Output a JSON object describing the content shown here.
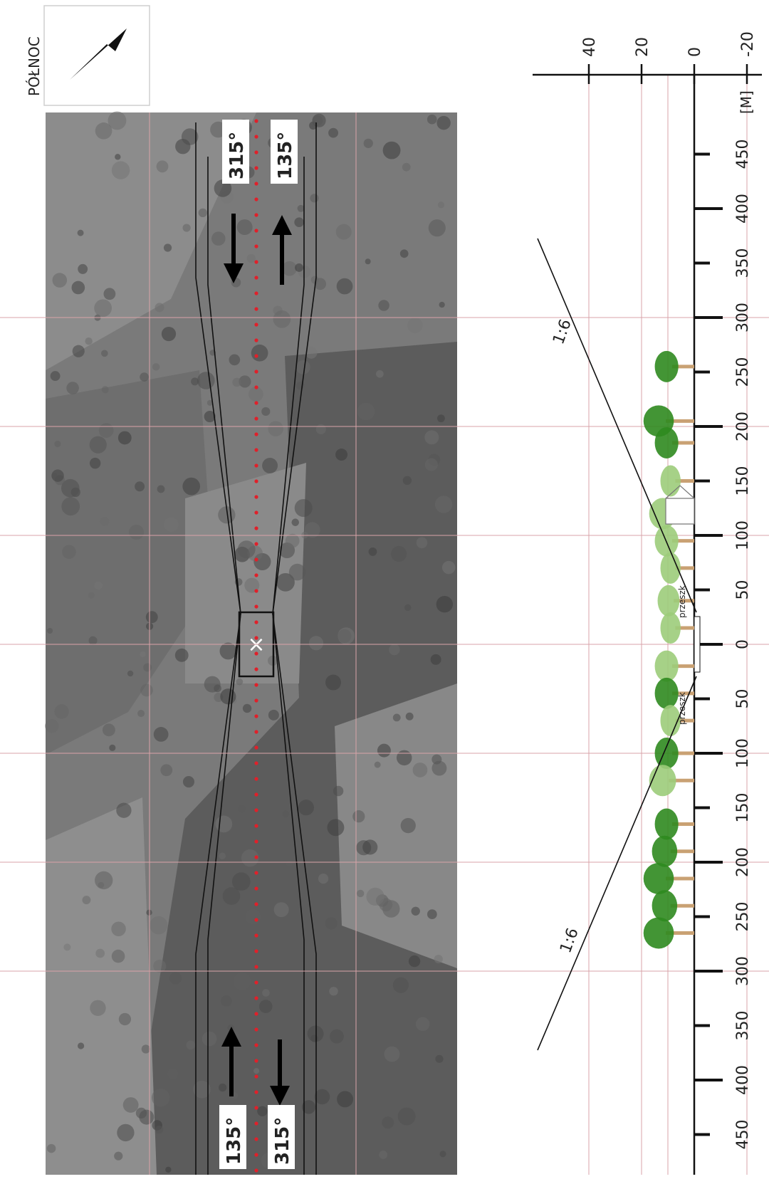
{
  "compass": {
    "label": "PÓŁNOC",
    "icon": "north-arrow-icon"
  },
  "photo": {
    "top_headings": {
      "left": "315°",
      "right": "135°"
    },
    "bottom_headings": {
      "left": "135°",
      "right": "315°"
    },
    "center_marker": "×",
    "colors": {
      "photo_bg": "#7a7a7a",
      "centerline": "#e0202a",
      "grid": "#d9a3a8"
    }
  },
  "profile": {
    "unit": "[M]",
    "height_ticks": [
      "40",
      "20",
      "0",
      "-20"
    ],
    "height_values": [
      40,
      20,
      0,
      -20
    ],
    "distance_ticks": [
      "450",
      "400",
      "350",
      "300",
      "250",
      "200",
      "150",
      "100",
      "50",
      "0",
      "50",
      "100",
      "150",
      "200",
      "250",
      "300",
      "350",
      "400",
      "450"
    ],
    "distance_values": [
      -450,
      -400,
      -350,
      -300,
      -250,
      -200,
      -150,
      -100,
      -50,
      0,
      50,
      100,
      150,
      200,
      250,
      300,
      350,
      400,
      450
    ],
    "slope_label_top": "1:6",
    "slope_label_bottom": "1:6",
    "slope_ratio": 6,
    "label_markers": [
      "przeszk",
      "przeszk"
    ],
    "colors": {
      "tree_dark": "#2f8a1f",
      "tree_light": "#9ccc7a",
      "trunk": "#c9a173"
    }
  }
}
